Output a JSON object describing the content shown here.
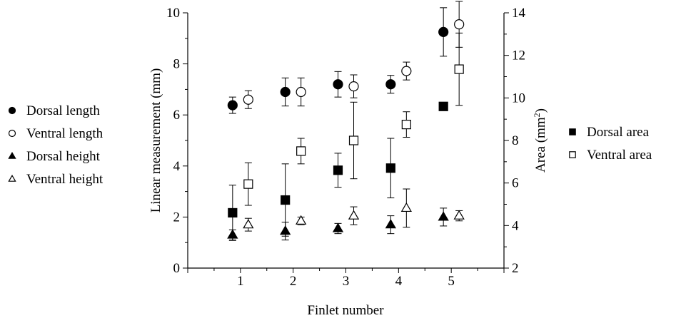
{
  "chart_data": {
    "type": "scatter",
    "xlabel": "Finlet number",
    "ylabel_left": "Linear measurement (mm)",
    "ylabel_right": {
      "base": "Area (mm",
      "sup": "2",
      "close": ")"
    },
    "x_ticks": [
      1,
      2,
      3,
      4,
      5
    ],
    "xlim": [
      0,
      6
    ],
    "ylim_left": [
      0,
      10
    ],
    "ylim_right": [
      2,
      14
    ],
    "y_ticks_left": [
      0,
      2,
      4,
      6,
      8,
      10
    ],
    "y_ticks_right": [
      2,
      4,
      6,
      8,
      10,
      12,
      14
    ],
    "error_bars": true,
    "legends": [
      {
        "placement": "left",
        "entries": [
          "Dorsal length",
          "Ventral length",
          "Dorsal height",
          "Ventral height"
        ]
      },
      {
        "placement": "right",
        "entries": [
          "Dorsal area",
          "Ventral area"
        ]
      }
    ],
    "series": [
      {
        "name": "Dorsal length",
        "axis": "left",
        "marker": "circle",
        "fill": "filled",
        "offset": -1,
        "x": [
          1,
          2,
          3,
          4,
          5
        ],
        "values": [
          6.38,
          6.9,
          7.2,
          7.2,
          9.25
        ],
        "err": [
          0.32,
          0.55,
          0.5,
          0.35,
          0.95
        ]
      },
      {
        "name": "Ventral length",
        "axis": "left",
        "marker": "circle",
        "fill": "open",
        "offset": 1,
        "x": [
          1,
          2,
          3,
          4,
          5
        ],
        "values": [
          6.6,
          6.9,
          7.12,
          7.72,
          9.55
        ],
        "err": [
          0.35,
          0.55,
          0.45,
          0.35,
          0.9
        ]
      },
      {
        "name": "Dorsal height",
        "axis": "left",
        "marker": "triangle",
        "fill": "filled",
        "offset": -1,
        "x": [
          1,
          2,
          3,
          4,
          5
        ],
        "values": [
          1.3,
          1.45,
          1.55,
          1.7,
          2.0
        ],
        "err": [
          0.2,
          0.35,
          0.2,
          0.35,
          0.35
        ]
      },
      {
        "name": "Ventral height",
        "axis": "left",
        "marker": "triangle",
        "fill": "open",
        "offset": 1,
        "x": [
          1,
          2,
          3,
          4,
          5
        ],
        "values": [
          1.7,
          1.85,
          2.05,
          2.35,
          2.05
        ],
        "err": [
          0.25,
          0.15,
          0.35,
          0.75,
          0.2
        ]
      },
      {
        "name": "Dorsal area",
        "axis": "right",
        "marker": "square",
        "fill": "filled",
        "offset": -1,
        "x": [
          1,
          2,
          3,
          4,
          5
        ],
        "values": [
          4.6,
          5.2,
          6.6,
          6.7,
          9.6
        ],
        "err": [
          1.3,
          1.7,
          0.8,
          1.4,
          0
        ]
      },
      {
        "name": "Ventral area",
        "axis": "right",
        "marker": "square",
        "fill": "open",
        "offset": 1,
        "x": [
          1,
          2,
          3,
          4,
          5
        ],
        "values": [
          5.95,
          7.5,
          8.0,
          8.75,
          11.35
        ],
        "err": [
          1.0,
          0.6,
          1.8,
          0.6,
          1.7
        ]
      }
    ]
  }
}
